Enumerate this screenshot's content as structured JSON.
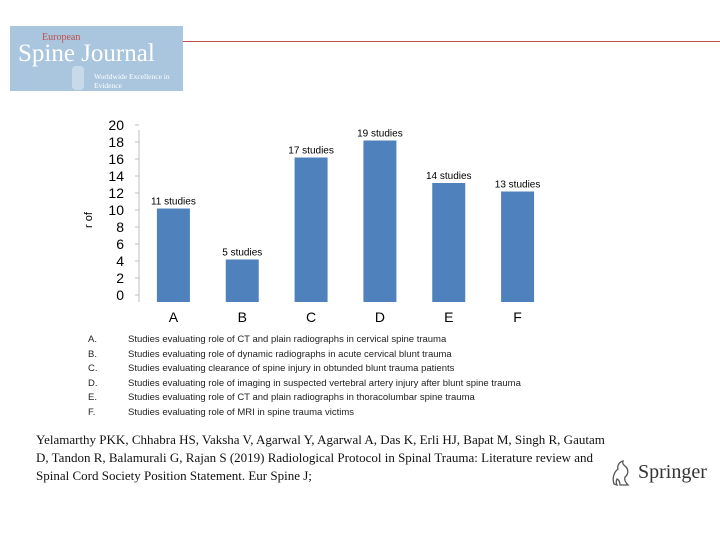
{
  "logo": {
    "prefix": "European",
    "title": "Spine Journal",
    "tagline": "Worldwide Excellence in Evidence"
  },
  "chart_data": {
    "type": "bar",
    "categories": [
      "A",
      "B",
      "C",
      "D",
      "E",
      "F"
    ],
    "values": [
      11,
      5,
      17,
      19,
      14,
      13
    ],
    "data_labels": [
      "11 studies",
      "5 studies",
      "17 studies",
      "19 studies",
      "14 studies",
      "13 studies"
    ],
    "y_ticks": [
      0,
      2,
      4,
      6,
      8,
      10,
      12,
      14,
      16,
      18,
      20
    ],
    "ylim": [
      0,
      20
    ],
    "ylabel": "r of",
    "title": "",
    "xlabel": "",
    "bar_color": "#4f81bd"
  },
  "legend": [
    {
      "key": "A.",
      "text": "Studies evaluating role of CT and plain radiographs in cervical spine trauma"
    },
    {
      "key": "B.",
      "text": "Studies evaluating role of dynamic radiographs in acute cervical blunt trauma"
    },
    {
      "key": "C.",
      "text": "Studies evaluating clearance of spine injury in obtunded blunt trauma patients"
    },
    {
      "key": "D.",
      "text": "Studies evaluating role of imaging in suspected vertebral artery injury after blunt spine trauma"
    },
    {
      "key": "E.",
      "text": "Studies evaluating role of CT and plain radiographs in thoracolumbar spine trauma"
    },
    {
      "key": "F.",
      "text": "Studies evaluating role of MRI in spine trauma victims"
    }
  ],
  "citation": "Yelamarthy PKK, Chhabra HS, Vaksha V, Agarwal Y, Agarwal A, Das K, Erli HJ, Bapat M, Singh R, Gautam D, Tandon R, Balamurali G, Rajan S (2019) Radiological Protocol in Spinal Trauma: Literature review and Spinal Cord Society Position Statement. Eur Spine J;",
  "publisher": "Springer",
  "colors": {
    "accent_line": "#c0504d",
    "logo_bg": "#a9c6de"
  }
}
